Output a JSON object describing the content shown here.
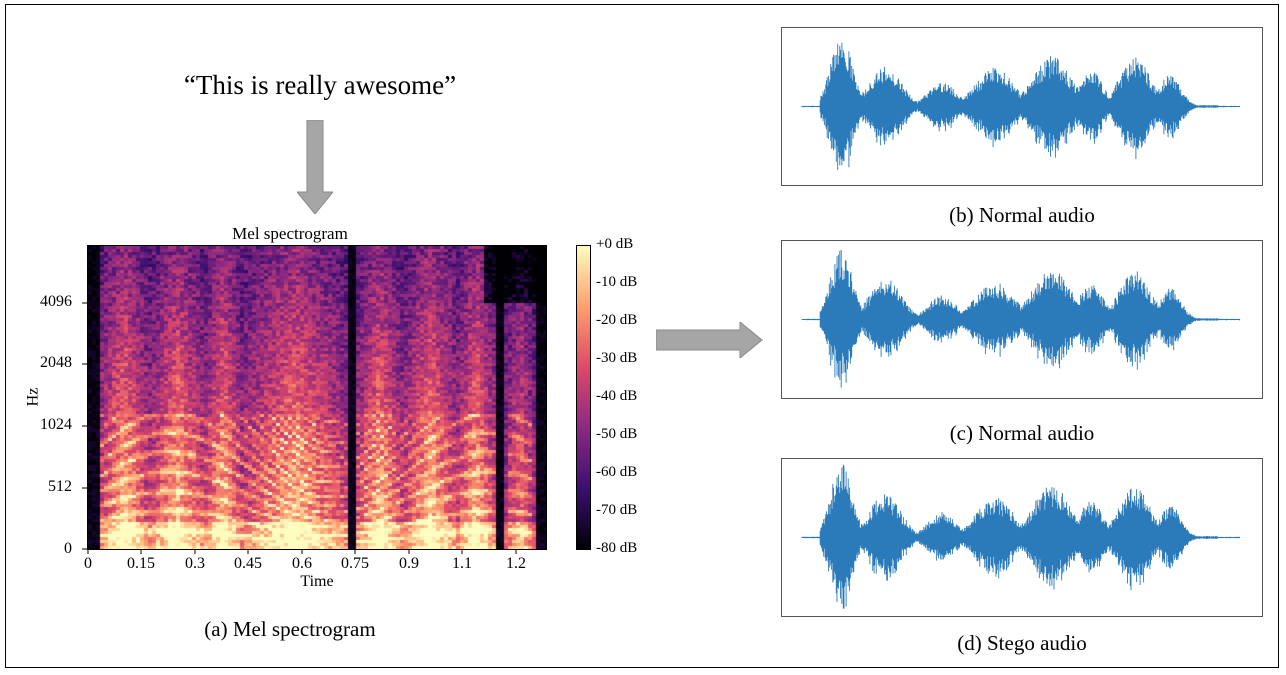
{
  "quote": "“This is really awesome”",
  "spectrogram": {
    "title": "Mel spectrogram",
    "xlabel": "Time",
    "ylabel": "Hz",
    "xticks": [
      "0",
      "0.15",
      "0.3",
      "0.45",
      "0.6",
      "0.75",
      "0.9",
      "1.1",
      "1.2"
    ],
    "yticks": [
      "4096",
      "2048",
      "1024",
      "512",
      "0"
    ],
    "colorbar_ticks": [
      "+0 dB",
      "-10 dB",
      "-20 dB",
      "-30 dB",
      "-40 dB",
      "-50 dB",
      "-60 dB",
      "-70 dB",
      "-80 dB"
    ],
    "colormap": [
      "#000004",
      "#3b0f70",
      "#8c2981",
      "#de4968",
      "#fe9f6d",
      "#fcfdbf"
    ]
  },
  "captions": {
    "a": "(a) Mel spectrogram",
    "b": "(b) Normal audio",
    "c": "(c) Normal audio",
    "d": "(d)  Stego audio"
  },
  "colors": {
    "waveform": "#2b7bba",
    "arrow": "#a6a6a6"
  }
}
